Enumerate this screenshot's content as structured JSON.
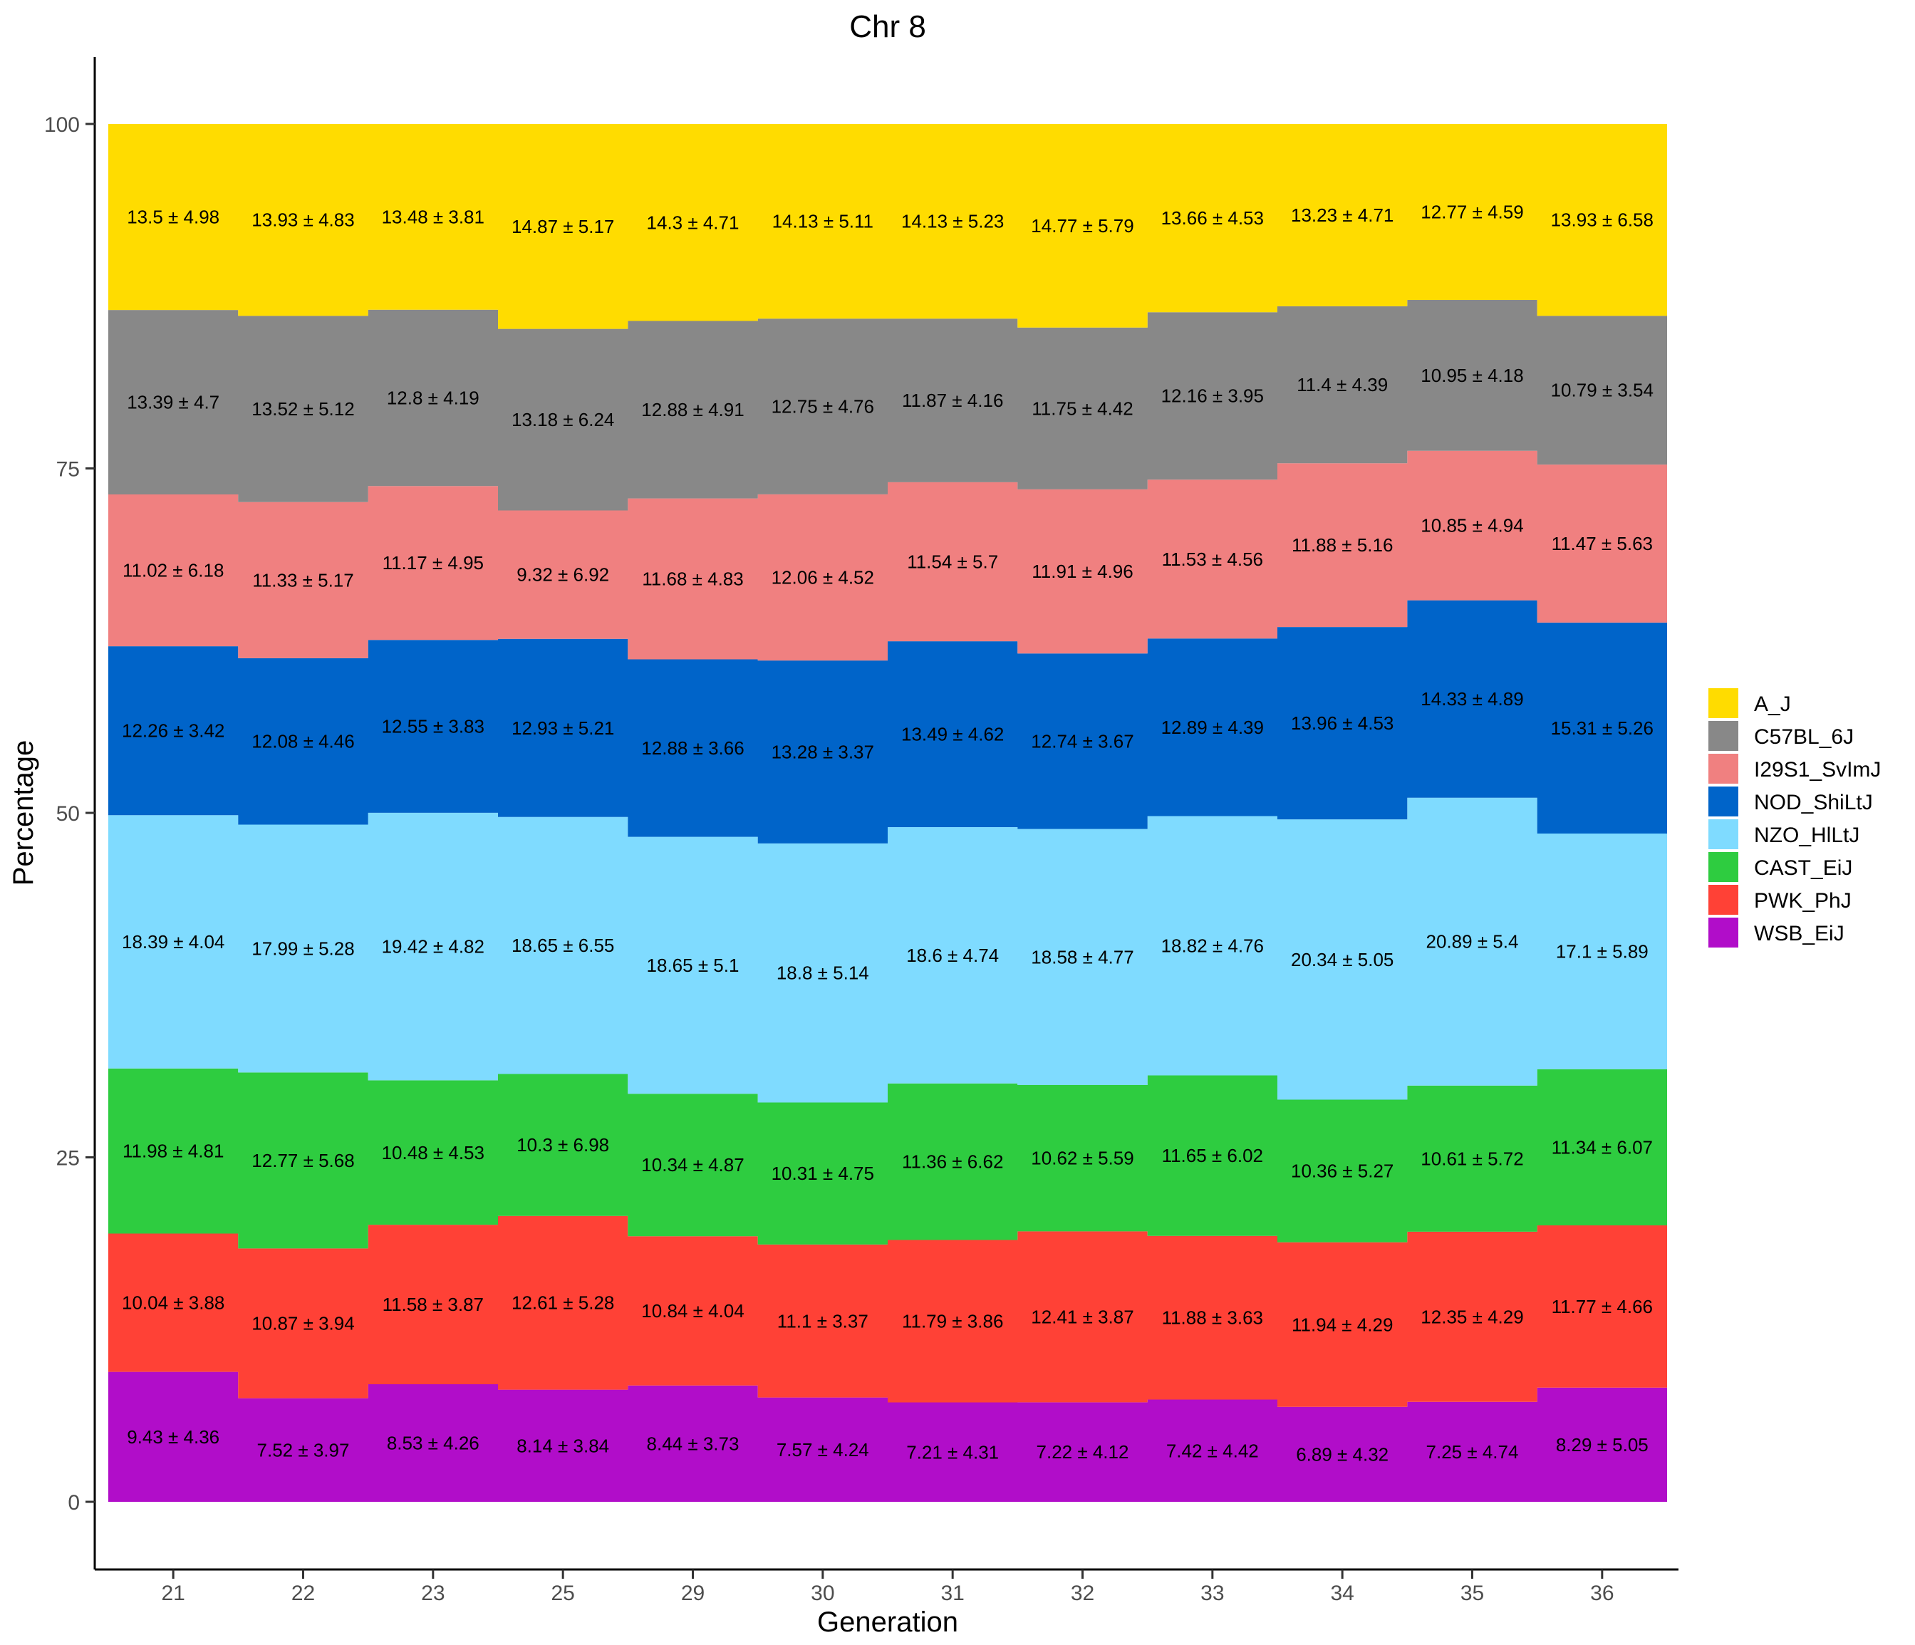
{
  "chart_data": {
    "type": "area",
    "title": "Chr 8",
    "xlabel": "Generation",
    "ylabel": "Percentage",
    "ylim": [
      0,
      100
    ],
    "yticks": [
      0,
      25,
      50,
      75,
      100
    ],
    "grid": false,
    "legend_placement": "right",
    "categories": [
      "21",
      "22",
      "23",
      "25",
      "29",
      "30",
      "31",
      "32",
      "33",
      "34",
      "35",
      "36"
    ],
    "series": [
      {
        "name": "WSB_EiJ",
        "color": "#B10DC9",
        "values": [
          9.43,
          7.52,
          8.53,
          8.14,
          8.44,
          7.57,
          7.21,
          7.22,
          7.42,
          6.89,
          7.25,
          8.29
        ],
        "labels": [
          "9.43 ± 4.36",
          "7.52 ± 3.97",
          "8.53 ± 4.26",
          "8.14 ± 3.84",
          "8.44 ± 3.73",
          "7.57 ± 4.24",
          "7.21 ± 4.31",
          "7.22 ± 4.12",
          "7.42 ± 4.42",
          "6.89 ± 4.32",
          "7.25 ± 4.74",
          "8.29 ± 5.05"
        ]
      },
      {
        "name": "PWK_PhJ",
        "color": "#FF4136",
        "values": [
          10.04,
          10.87,
          11.58,
          12.61,
          10.84,
          11.1,
          11.79,
          12.41,
          11.88,
          11.94,
          12.35,
          11.77
        ],
        "labels": [
          "10.04 ± 3.88",
          "10.87 ± 3.94",
          "11.58 ± 3.87",
          "12.61 ± 5.28",
          "10.84 ± 4.04",
          "11.1 ± 3.37",
          "11.79 ± 3.86",
          "12.41 ± 3.87",
          "11.88 ± 3.63",
          "11.94 ± 4.29",
          "12.35 ± 4.29",
          "11.77 ± 4.66"
        ]
      },
      {
        "name": "CAST_EiJ",
        "color": "#2ECC40",
        "values": [
          11.98,
          12.77,
          10.48,
          10.3,
          10.34,
          10.31,
          11.36,
          10.62,
          11.65,
          10.36,
          10.61,
          11.34
        ],
        "labels": [
          "11.98 ± 4.81",
          "12.77 ± 5.68",
          "10.48 ± 4.53",
          "10.3 ± 6.98",
          "10.34 ± 4.87",
          "10.31 ± 4.75",
          "11.36 ± 6.62",
          "10.62 ± 5.59",
          "11.65 ± 6.02",
          "10.36 ± 5.27",
          "10.61 ± 5.72",
          "11.34 ± 6.07"
        ]
      },
      {
        "name": "NZO_HlLtJ",
        "color": "#7FDBFF",
        "values": [
          18.39,
          17.99,
          19.42,
          18.65,
          18.65,
          18.8,
          18.6,
          18.58,
          18.82,
          20.34,
          20.89,
          17.1
        ],
        "labels": [
          "18.39 ± 4.04",
          "17.99 ± 5.28",
          "19.42 ± 4.82",
          "18.65 ± 6.55",
          "18.65 ± 5.1",
          "18.8 ± 5.14",
          "18.6 ± 4.74",
          "18.58 ± 4.77",
          "18.82 ± 4.76",
          "20.34 ± 5.05",
          "20.89 ± 5.4",
          "17.1 ± 5.89"
        ]
      },
      {
        "name": "NOD_ShiLtJ",
        "color": "#0064C9",
        "values": [
          12.26,
          12.08,
          12.55,
          12.93,
          12.88,
          13.28,
          13.49,
          12.74,
          12.89,
          13.96,
          14.33,
          15.31
        ],
        "labels": [
          "12.26 ± 3.42",
          "12.08 ± 4.46",
          "12.55 ± 3.83",
          "12.93 ± 5.21",
          "12.88 ± 3.66",
          "13.28 ± 3.37",
          "13.49 ± 4.62",
          "12.74 ± 3.67",
          "12.89 ± 4.39",
          "13.96 ± 4.53",
          "14.33 ± 4.89",
          "15.31 ± 5.26"
        ]
      },
      {
        "name": "I29S1_SvImJ",
        "color": "#F08080",
        "values": [
          11.02,
          11.33,
          11.17,
          9.32,
          11.68,
          12.06,
          11.54,
          11.91,
          11.53,
          11.88,
          10.85,
          11.47
        ],
        "labels": [
          "11.02 ± 6.18",
          "11.33 ± 5.17",
          "11.17 ± 4.95",
          "9.32 ± 6.92",
          "11.68 ± 4.83",
          "12.06 ± 4.52",
          "11.54 ± 5.7",
          "11.91 ± 4.96",
          "11.53 ± 4.56",
          "11.88 ± 5.16",
          "10.85 ± 4.94",
          "11.47 ± 5.63"
        ]
      },
      {
        "name": "C57BL_6J",
        "color": "#888888",
        "values": [
          13.39,
          13.52,
          12.8,
          13.18,
          12.88,
          12.75,
          11.87,
          11.75,
          12.16,
          11.4,
          10.95,
          10.79
        ],
        "labels": [
          "13.39 ± 4.7",
          "13.52 ± 5.12",
          "12.8 ± 4.19",
          "13.18 ± 6.24",
          "12.88 ± 4.91",
          "12.75 ± 4.76",
          "11.87 ± 4.16",
          "11.75 ± 4.42",
          "12.16 ± 3.95",
          "11.4 ± 4.39",
          "10.95 ± 4.18",
          "10.79 ± 3.54"
        ]
      },
      {
        "name": "A_J",
        "color": "#FFDC00",
        "values": [
          13.5,
          13.93,
          13.48,
          14.87,
          14.3,
          14.13,
          14.13,
          14.77,
          13.66,
          13.23,
          12.77,
          13.93
        ],
        "labels": [
          "13.5 ± 4.98",
          "13.93 ± 4.83",
          "13.48 ± 3.81",
          "14.87 ± 5.17",
          "14.3 ± 4.71",
          "14.13 ± 5.11",
          "14.13 ± 5.23",
          "14.77 ± 5.79",
          "13.66 ± 4.53",
          "13.23 ± 4.71",
          "12.77 ± 4.59",
          "13.93 ± 6.58"
        ]
      }
    ],
    "legend": [
      "A_J",
      "C57BL_6J",
      "I29S1_SvImJ",
      "NOD_ShiLtJ",
      "NZO_HlLtJ",
      "CAST_EiJ",
      "PWK_PhJ",
      "WSB_EiJ"
    ]
  }
}
